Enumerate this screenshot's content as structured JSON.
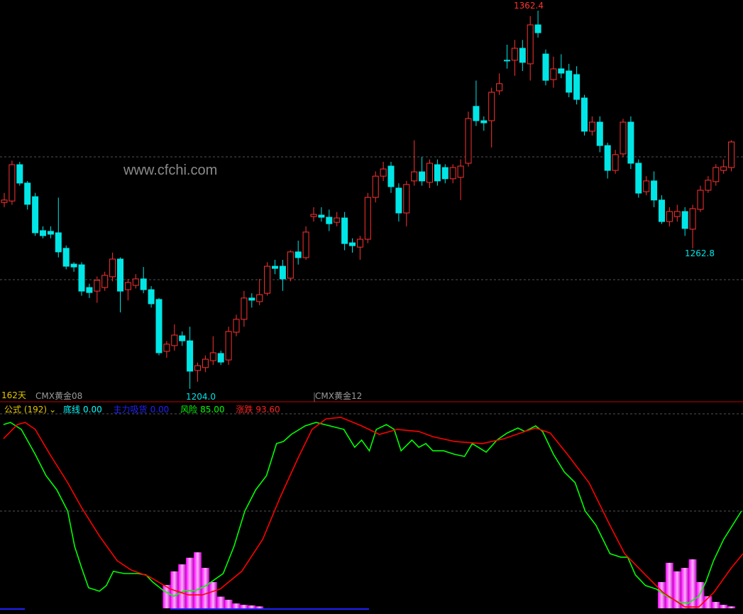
{
  "watermark": "www.cfchi.com",
  "contract_left": "CMX黄金08",
  "contract_mid": "CMX黄金12",
  "period_label": "162天",
  "price_labels": {
    "high": "1362.4",
    "low_main": "1204.0",
    "low_right": "1262.8"
  },
  "legend": {
    "formula": "公式 (192)",
    "dropdown_icon": "chevron-down-icon",
    "items": [
      {
        "name": "底线",
        "value": "0.00",
        "color": "#00ffff"
      },
      {
        "name": "主力吸货",
        "value": "0.00",
        "color": "#0000ff"
      },
      {
        "name": "风险",
        "value": "85.00",
        "color": "#00ff00"
      },
      {
        "name": "涨跌",
        "value": "93.60",
        "color": "#ff2020"
      }
    ]
  },
  "colors": {
    "up": "#ff3232",
    "down": "#00e6e6",
    "risk_line": "#00ff00",
    "change_line": "#ff0000",
    "histogram": "#ff40ff",
    "separator": "#c00000"
  },
  "chart_data": [
    {
      "type": "candlestick",
      "ylim": [
        1200,
        1366.7
      ],
      "grid": "dashed horizontal",
      "ohlc": [
        [
          1282.0,
          1286,
          1280,
          1283.0
        ],
        [
          1282.6,
          1299.5,
          1281,
          1297.8
        ],
        [
          1297.8,
          1299,
          1289,
          1290.1
        ],
        [
          1290.1,
          1291,
          1279,
          1281.2
        ],
        [
          1284.4,
          1286,
          1268,
          1269.3
        ],
        [
          1270.2,
          1272,
          1267,
          1268.1
        ],
        [
          1269.9,
          1272,
          1267,
          1268.7
        ],
        [
          1269.3,
          1284,
          1259,
          1261.3
        ],
        [
          1262.8,
          1264,
          1254,
          1255.3
        ],
        [
          1256.2,
          1257,
          1253,
          1255.0
        ],
        [
          1255.9,
          1257,
          1243,
          1244.9
        ],
        [
          1246.4,
          1248,
          1242,
          1244.3
        ],
        [
          1244.9,
          1251,
          1240,
          1249.4
        ],
        [
          1246.4,
          1253,
          1245,
          1251.5
        ],
        [
          1250.9,
          1261,
          1249,
          1258.3
        ],
        [
          1258.3,
          1259,
          1236,
          1244.9
        ],
        [
          1245.5,
          1250,
          1241,
          1248.5
        ],
        [
          1247.3,
          1252,
          1246,
          1250.0
        ],
        [
          1250.0,
          1255,
          1244,
          1245.5
        ],
        [
          1245.5,
          1247,
          1238,
          1239.6
        ],
        [
          1241.4,
          1242,
          1218,
          1219.1
        ],
        [
          1219.7,
          1224,
          1217,
          1222.7
        ],
        [
          1222.1,
          1231,
          1220,
          1226.5
        ],
        [
          1226.2,
          1228,
          1222,
          1224.1
        ],
        [
          1224.1,
          1230,
          1204.0,
          1211.4
        ],
        [
          1211.7,
          1215,
          1207,
          1213.7
        ],
        [
          1212.9,
          1218,
          1211,
          1216.4
        ],
        [
          1215.8,
          1226,
          1214,
          1219.1
        ],
        [
          1218.8,
          1220,
          1214,
          1215.2
        ],
        [
          1216.1,
          1230,
          1214,
          1228.0
        ],
        [
          1227.7,
          1235,
          1226,
          1233.1
        ],
        [
          1233.1,
          1245,
          1230,
          1242.0
        ],
        [
          1242.0,
          1244,
          1238,
          1241.1
        ],
        [
          1240.5,
          1250,
          1239,
          1243.4
        ],
        [
          1244.0,
          1257,
          1243,
          1255.3
        ],
        [
          1255.3,
          1258,
          1252,
          1254.4
        ],
        [
          1255.3,
          1258,
          1245,
          1250.0
        ],
        [
          1250.3,
          1262,
          1249,
          1261.3
        ],
        [
          1261.3,
          1266,
          1256,
          1258.9
        ],
        [
          1258.9,
          1272,
          1258,
          1269.6
        ],
        [
          1276.1,
          1280,
          1274,
          1277.0
        ],
        [
          1276.7,
          1280,
          1274,
          1275.8
        ],
        [
          1275.8,
          1279,
          1270,
          1273.1
        ],
        [
          1273.7,
          1278,
          1272,
          1275.5
        ],
        [
          1275.5,
          1278,
          1262,
          1264.8
        ],
        [
          1265.1,
          1267,
          1261,
          1263.9
        ],
        [
          1263.3,
          1268,
          1258,
          1266.6
        ],
        [
          1266.6,
          1286,
          1265,
          1284.1
        ],
        [
          1284.1,
          1295,
          1282,
          1293.0
        ],
        [
          1293.0,
          1299,
          1291,
          1296.0
        ],
        [
          1297.2,
          1299,
          1286,
          1288.6
        ],
        [
          1288.0,
          1290,
          1274,
          1277.6
        ],
        [
          1277.6,
          1291,
          1272,
          1289.5
        ],
        [
          1291.0,
          1308,
          1289,
          1294.8
        ],
        [
          1294.8,
          1301,
          1289,
          1291.0
        ],
        [
          1290.4,
          1300,
          1288,
          1298.4
        ],
        [
          1297.8,
          1300,
          1289,
          1291.0
        ],
        [
          1296.6,
          1298,
          1290,
          1291.9
        ],
        [
          1291.9,
          1298,
          1290,
          1296.6
        ],
        [
          1292.5,
          1300,
          1283,
          1297.2
        ],
        [
          1298.4,
          1320,
          1297,
          1317.1
        ],
        [
          1322.2,
          1333,
          1314,
          1316.2
        ],
        [
          1316.2,
          1318,
          1312,
          1315.3
        ],
        [
          1316.2,
          1330,
          1305,
          1328.1
        ],
        [
          1328.7,
          1336,
          1327,
          1331.7
        ],
        [
          1341.5,
          1348,
          1338,
          1341.2
        ],
        [
          1341.5,
          1350,
          1335,
          1346.5
        ],
        [
          1346.5,
          1350,
          1337,
          1340.6
        ],
        [
          1340.0,
          1360,
          1333,
          1356.3
        ],
        [
          1356.3,
          1362.4,
          1351,
          1353.0
        ],
        [
          1344.1,
          1346,
          1331,
          1333.1
        ],
        [
          1333.4,
          1343,
          1330,
          1337.9
        ],
        [
          1337.9,
          1344,
          1334,
          1336.1
        ],
        [
          1337.0,
          1340,
          1326,
          1328.1
        ],
        [
          1335.5,
          1339,
          1323,
          1325.1
        ],
        [
          1325.7,
          1327,
          1310,
          1311.8
        ],
        [
          1311.8,
          1318,
          1310,
          1315.6
        ],
        [
          1315.6,
          1318,
          1303,
          1305.8
        ],
        [
          1305.8,
          1307,
          1292,
          1295.4
        ],
        [
          1295.4,
          1304,
          1294,
          1302.0
        ],
        [
          1302.3,
          1317,
          1301,
          1315.6
        ],
        [
          1315.6,
          1318,
          1296,
          1298.4
        ],
        [
          1298.4,
          1300,
          1284,
          1285.9
        ],
        [
          1286.5,
          1293,
          1285,
          1291.0
        ],
        [
          1291.0,
          1295,
          1280,
          1283.0
        ],
        [
          1283.0,
          1285,
          1273,
          1274.0
        ],
        [
          1274.0,
          1280,
          1272,
          1278.2
        ],
        [
          1276.1,
          1281,
          1274,
          1278.2
        ],
        [
          1278.2,
          1280,
          1268,
          1271.1
        ],
        [
          1270.8,
          1281,
          1262.8,
          1279.4
        ],
        [
          1279.1,
          1289,
          1278,
          1287.1
        ],
        [
          1287.1,
          1293,
          1286,
          1291.3
        ],
        [
          1290.7,
          1298,
          1289,
          1296.6
        ],
        [
          1295.4,
          1300,
          1294,
          1296.9
        ],
        [
          1296.6,
          1308,
          1295,
          1307.3
        ]
      ]
    },
    {
      "type": "line",
      "ylim": [
        0,
        100
      ],
      "series": [
        {
          "name": "风险",
          "color": "#00ff00",
          "points": [
            [
              0.9,
              94.5
            ],
            [
              1.8,
              95.6
            ],
            [
              3.2,
              92.0
            ],
            [
              5.0,
              79.2
            ],
            [
              6.4,
              68.2
            ],
            [
              7.8,
              60.9
            ],
            [
              9.2,
              50.0
            ],
            [
              10.1,
              31.8
            ],
            [
              11.0,
              20.8
            ],
            [
              11.9,
              10.6
            ],
            [
              13.3,
              8.8
            ],
            [
              14.2,
              11.7
            ],
            [
              15.1,
              19.0
            ],
            [
              16.5,
              17.9
            ],
            [
              18.3,
              17.9
            ],
            [
              19.3,
              17.2
            ],
            [
              20.2,
              13.5
            ],
            [
              21.6,
              9.1
            ],
            [
              22.9,
              6.2
            ],
            [
              24.3,
              9.1
            ],
            [
              25.7,
              9.1
            ],
            [
              27.1,
              11.7
            ],
            [
              29.3,
              17.9
            ],
            [
              30.7,
              31.8
            ],
            [
              32.1,
              50.0
            ],
            [
              33.5,
              60.9
            ],
            [
              34.9,
              68.2
            ],
            [
              36.2,
              84.7
            ],
            [
              37.1,
              85.8
            ],
            [
              38.1,
              89.4
            ],
            [
              39.9,
              93.8
            ],
            [
              41.3,
              95.6
            ],
            [
              43.1,
              93.8
            ],
            [
              44.9,
              92.0
            ],
            [
              46.3,
              82.8
            ],
            [
              47.2,
              86.5
            ],
            [
              48.2,
              81.0
            ],
            [
              49.1,
              92.0
            ],
            [
              50.4,
              94.5
            ],
            [
              51.4,
              92.0
            ],
            [
              52.3,
              81.0
            ],
            [
              53.7,
              86.5
            ],
            [
              54.6,
              82.8
            ],
            [
              55.5,
              84.7
            ],
            [
              56.4,
              81.0
            ],
            [
              57.8,
              81.0
            ],
            [
              59.2,
              79.2
            ],
            [
              60.5,
              78.1
            ],
            [
              61.5,
              84.7
            ],
            [
              63.3,
              80.3
            ],
            [
              64.7,
              86.5
            ],
            [
              66.0,
              90.1
            ],
            [
              67.4,
              92.7
            ],
            [
              68.3,
              90.9
            ],
            [
              69.7,
              93.8
            ],
            [
              70.6,
              90.9
            ],
            [
              72.0,
              79.2
            ],
            [
              73.4,
              70.1
            ],
            [
              74.8,
              64.6
            ],
            [
              76.1,
              50.0
            ],
            [
              77.5,
              42.7
            ],
            [
              79.3,
              28.1
            ],
            [
              80.7,
              26.3
            ],
            [
              81.6,
              26.3
            ],
            [
              82.6,
              17.2
            ],
            [
              83.9,
              11.7
            ],
            [
              85.3,
              9.9
            ],
            [
              86.7,
              6.2
            ],
            [
              88.1,
              3.3
            ],
            [
              89.4,
              2.6
            ],
            [
              90.8,
              6.2
            ],
            [
              91.7,
              13.5
            ],
            [
              92.7,
              24.5
            ],
            [
              94.0,
              35.4
            ],
            [
              96.3,
              50.0
            ]
          ]
        },
        {
          "name": "涨跌",
          "color": "#ff0000",
          "points": [
            [
              0.9,
              87.2
            ],
            [
              2.7,
              94.5
            ],
            [
              3.7,
              95.6
            ],
            [
              5.0,
              92.0
            ],
            [
              6.9,
              79.2
            ],
            [
              9.2,
              64.6
            ],
            [
              11.0,
              51.8
            ],
            [
              13.3,
              37.2
            ],
            [
              15.6,
              24.5
            ],
            [
              17.4,
              19.7
            ],
            [
              19.7,
              16.4
            ],
            [
              22.5,
              9.9
            ],
            [
              24.8,
              6.9
            ],
            [
              26.6,
              6.9
            ],
            [
              28.9,
              9.9
            ],
            [
              31.7,
              19.0
            ],
            [
              34.4,
              35.4
            ],
            [
              36.7,
              57.3
            ],
            [
              39.0,
              77.4
            ],
            [
              40.8,
              92.0
            ],
            [
              42.6,
              97.4
            ],
            [
              44.5,
              98.2
            ],
            [
              47.2,
              93.8
            ],
            [
              49.5,
              89.4
            ],
            [
              51.8,
              92.0
            ],
            [
              54.6,
              90.9
            ],
            [
              56.4,
              88.3
            ],
            [
              59.2,
              85.8
            ],
            [
              62.8,
              84.7
            ],
            [
              65.6,
              87.2
            ],
            [
              68.3,
              90.9
            ],
            [
              69.7,
              92.7
            ],
            [
              71.6,
              90.1
            ],
            [
              73.8,
              79.2
            ],
            [
              76.6,
              64.6
            ],
            [
              79.3,
              42.7
            ],
            [
              81.2,
              28.1
            ],
            [
              83.9,
              17.2
            ],
            [
              86.2,
              8.0
            ],
            [
              89.0,
              0.7
            ],
            [
              90.8,
              0.7
            ],
            [
              92.7,
              8.0
            ],
            [
              95.0,
              20.8
            ],
            [
              96.5,
              28.1
            ]
          ]
        }
      ],
      "histogram": {
        "name": "主力吸货",
        "bars": [
          [
            22,
            12
          ],
          [
            23,
            19
          ],
          [
            24,
            22.6
          ],
          [
            25,
            26
          ],
          [
            26,
            28.8
          ],
          [
            27,
            20.8
          ],
          [
            28,
            13.5
          ],
          [
            29,
            6
          ],
          [
            30,
            4.4
          ],
          [
            31,
            2.5
          ],
          [
            32,
            1.8
          ],
          [
            33,
            1.5
          ],
          [
            34,
            1.0
          ],
          [
            86,
            13.5
          ],
          [
            87,
            23.4
          ],
          [
            88,
            19
          ],
          [
            89,
            20.8
          ],
          [
            90,
            25.2
          ],
          [
            91,
            13.5
          ],
          [
            92,
            6.2
          ],
          [
            93,
            3.3
          ],
          [
            94,
            1.8
          ],
          [
            95,
            1.0
          ]
        ]
      }
    }
  ]
}
